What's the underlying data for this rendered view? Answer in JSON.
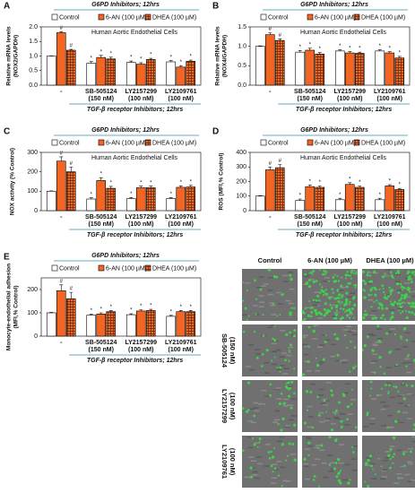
{
  "chart_data": [
    {
      "type": "bar",
      "panel": "A",
      "header": "G6PD Inhibitors; 12hrs",
      "annotation": "Human Aortic Endothelial Cells",
      "ylabel": [
        "Relative mRNA levels",
        "(NOX2/GAPDH)"
      ],
      "xlabel": "TGF-β receptor Inhibitors; 12hrs",
      "categories": [
        "-",
        "SB-505124",
        "LY2157299",
        "LY2109761"
      ],
      "sublabels": [
        null,
        "(150 nM)",
        "(100 nM)",
        "(100 nM)"
      ],
      "ylim": [
        0,
        2
      ],
      "yticks": [
        {
          "value": 0,
          "label": "0.0"
        },
        {
          "value": 0.5,
          "label": "0.5"
        },
        {
          "value": 1,
          "label": "1.0"
        },
        {
          "value": 1.5,
          "label": "1.5"
        },
        {
          "value": 2,
          "label": "2.0"
        }
      ],
      "series": [
        {
          "name": "Control",
          "color": "#ffffff",
          "values": [
            1.0,
            0.75,
            0.78,
            0.8
          ],
          "errors": [
            0.01,
            0.06,
            0.05,
            0.04
          ],
          "markers": [
            null,
            "*",
            "*",
            "*"
          ]
        },
        {
          "name": "6-AN (100 µM)",
          "color": "#f26522",
          "values": [
            1.8,
            0.95,
            0.72,
            0.62
          ],
          "errors": [
            0.04,
            0.07,
            0.05,
            0.05
          ],
          "markers": [
            "#",
            "*",
            "*",
            "*"
          ]
        },
        {
          "name": "DHEA (100 µM)",
          "color": "#f26522",
          "pattern": "grid",
          "values": [
            1.2,
            0.9,
            0.88,
            0.82
          ],
          "errors": [
            0.03,
            0.06,
            0.04,
            0.04
          ],
          "markers": [
            "#",
            "*",
            "*",
            "*"
          ]
        }
      ]
    },
    {
      "type": "bar",
      "panel": "B",
      "header": "G6PD Inhibitors; 12hrs",
      "annotation": "Human Aortic Endothelial Cells",
      "ylabel": [
        "Relative mRNA levels",
        "(NOX4/GAPDH)"
      ],
      "xlabel": "TGF-β receptor Inhibitors; 12hrs",
      "categories": [
        "-",
        "SB-505124",
        "LY2157299",
        "LY2109761"
      ],
      "sublabels": [
        null,
        "(150 nM)",
        "(100 nM)",
        "(100 nM)"
      ],
      "ylim": [
        0,
        1.5
      ],
      "yticks": [
        {
          "value": 0,
          "label": "0.0"
        },
        {
          "value": 0.5,
          "label": "0.5"
        },
        {
          "value": 1,
          "label": "1.0"
        },
        {
          "value": 1.5,
          "label": "1.5"
        }
      ],
      "series": [
        {
          "name": "Control",
          "color": "#ffffff",
          "values": [
            1.0,
            0.85,
            0.88,
            0.88
          ],
          "errors": [
            0.01,
            0.04,
            0.03,
            0.03
          ],
          "markers": [
            null,
            "*",
            "*",
            "*"
          ]
        },
        {
          "name": "6-AN (100 µM)",
          "color": "#f26522",
          "values": [
            1.3,
            0.9,
            0.83,
            0.83
          ],
          "errors": [
            0.05,
            0.05,
            0.03,
            0.03
          ],
          "markers": [
            "#",
            "*",
            "*",
            "*"
          ]
        },
        {
          "name": "DHEA (100 µM)",
          "color": "#f26522",
          "pattern": "grid",
          "values": [
            1.15,
            0.8,
            0.82,
            0.7
          ],
          "errors": [
            0.04,
            0.04,
            0.03,
            0.04
          ],
          "markers": [
            "#",
            "*",
            "*",
            "*"
          ]
        }
      ]
    },
    {
      "type": "bar",
      "panel": "C",
      "header": "G6PD Inhibitors; 12hrs",
      "annotation": "Human Aortic Endothelial Cells",
      "ylabel": [
        "NOX activity (% Control)"
      ],
      "xlabel": "TGF-β receptor Inhibitors; 12hrs",
      "categories": [
        "-",
        "SB-505124",
        "LY2157299",
        "LY2109761"
      ],
      "sublabels": [
        null,
        "(150 nM)",
        "(100 nM)",
        "(100 nM)"
      ],
      "ylim": [
        0,
        300
      ],
      "yticks": [
        0,
        100,
        200,
        300
      ],
      "series": [
        {
          "name": "Control",
          "color": "#ffffff",
          "values": [
            100,
            60,
            62,
            62
          ],
          "errors": [
            2,
            6,
            5,
            5
          ],
          "markers": [
            null,
            "*",
            "*",
            "*"
          ]
        },
        {
          "name": "6-AN (100 µM)",
          "color": "#f26522",
          "values": [
            255,
            155,
            118,
            120
          ],
          "errors": [
            22,
            15,
            8,
            8
          ],
          "markers": [
            "#",
            "*",
            "*",
            "*"
          ]
        },
        {
          "name": "DHEA (100 µM)",
          "color": "#f26522",
          "pattern": "grid",
          "values": [
            200,
            115,
            118,
            122
          ],
          "errors": [
            25,
            10,
            8,
            8
          ],
          "markers": [
            "#",
            "*",
            "*",
            "*"
          ]
        }
      ]
    },
    {
      "type": "bar",
      "panel": "D",
      "header": "G6PD Inhibitors; 12hrs",
      "annotation": "Human Aortic Endothelial Cells",
      "ylabel": [
        "ROS (MFI,% Control)"
      ],
      "xlabel": "TGF-β receptor Inhibitors; 12hrs",
      "categories": [
        "-",
        "SB-505124",
        "LY2157299",
        "LY2109761"
      ],
      "sublabels": [
        null,
        "(150 nM)",
        "(100 nM)",
        "(100 nM)"
      ],
      "ylim": [
        0,
        400
      ],
      "yticks": [
        0,
        100,
        200,
        300,
        400
      ],
      "series": [
        {
          "name": "Control",
          "color": "#ffffff",
          "values": [
            100,
            70,
            75,
            75
          ],
          "errors": [
            3,
            10,
            10,
            10
          ],
          "markers": [
            null,
            "*",
            "*",
            "*"
          ]
        },
        {
          "name": "6-AN (100 µM)",
          "color": "#f26522",
          "values": [
            280,
            165,
            180,
            170
          ],
          "errors": [
            20,
            10,
            12,
            8
          ],
          "markers": [
            "#",
            "*",
            "*",
            "*"
          ]
        },
        {
          "name": "DHEA (100 µM)",
          "color": "#f26522",
          "pattern": "grid",
          "values": [
            295,
            160,
            160,
            145
          ],
          "errors": [
            22,
            10,
            10,
            8
          ],
          "markers": [
            "#",
            "*",
            "*",
            "*"
          ]
        }
      ]
    },
    {
      "type": "bar",
      "panel": "E",
      "header": "G6PD Inhibitors; 12hrs",
      "ylabel": [
        "Monocyte-endothelial adhesion",
        "(MFI,% Control)"
      ],
      "xlabel": "TGF-β receptor Inhibitors; 12hrs",
      "categories": [
        "-",
        "SB-505124",
        "LY2157299",
        "LY2109761"
      ],
      "sublabels": [
        null,
        "(150 nM)",
        "(100 nM)",
        "(100 nM)"
      ],
      "ylim": [
        0,
        250
      ],
      "yticks": [
        0,
        100,
        200
      ],
      "series": [
        {
          "name": "Control",
          "color": "#ffffff",
          "values": [
            100,
            90,
            92,
            85
          ],
          "errors": [
            2,
            4,
            4,
            4
          ],
          "markers": [
            null,
            "*",
            "*",
            "*"
          ]
        },
        {
          "name": "6-AN (100 µM)",
          "color": "#f26522",
          "values": [
            195,
            95,
            108,
            105
          ],
          "errors": [
            25,
            5,
            5,
            5
          ],
          "markers": [
            "#",
            "*",
            "*",
            "*"
          ]
        },
        {
          "name": "DHEA (100 µM)",
          "color": "#f26522",
          "pattern": "grid",
          "values": [
            160,
            105,
            110,
            105
          ],
          "errors": [
            28,
            5,
            5,
            5
          ],
          "markers": [
            "#",
            "*",
            "*",
            "*"
          ]
        }
      ]
    }
  ],
  "image_panel": {
    "column_labels": [
      "Control",
      "6-AN (100 µM)",
      "DHEA (100 µM)"
    ],
    "row_labels": [
      {
        "name": "SB-505124",
        "note": "(150 nM)"
      },
      {
        "name": "LY2157299",
        "note": "(100 nM)"
      },
      {
        "name": "LY2109761",
        "note": "(100 nM)"
      }
    ]
  }
}
